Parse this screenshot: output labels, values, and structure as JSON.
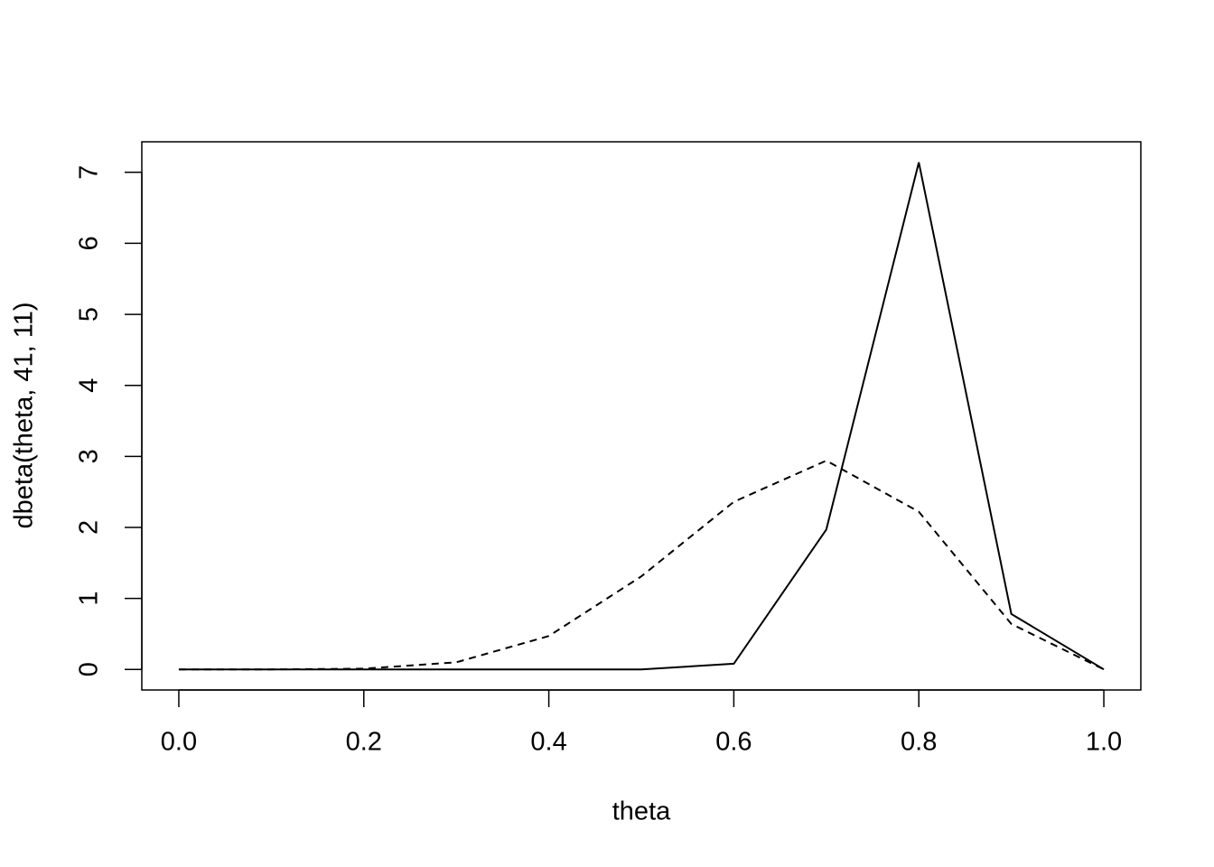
{
  "chart_data": {
    "type": "line",
    "xlabel": "theta",
    "ylabel": "dbeta(theta, 41, 11)",
    "x": [
      0,
      0.1,
      0.2,
      0.3,
      0.4,
      0.5,
      0.6,
      0.7,
      0.8,
      0.9,
      1
    ],
    "series": [
      {
        "color": "#000000",
        "line_style": "solid",
        "values": [
          0,
          0,
          0,
          0,
          0,
          0,
          0.08,
          1.97,
          7.14,
          0.78,
          0
        ]
      },
      {
        "color": "#000000",
        "line_style": "dashed",
        "values": [
          0,
          0,
          0.01,
          0.1,
          0.47,
          1.31,
          2.36,
          2.94,
          2.22,
          0.64,
          0
        ]
      }
    ],
    "xlim": [
      -0.04,
      1.04
    ],
    "xticks": [
      {
        "value": 0,
        "label": "0.0"
      },
      0.2,
      0.4,
      0.6,
      0.8,
      {
        "value": 1,
        "label": "1.0"
      }
    ],
    "ylim": [
      -0.29,
      7.43
    ],
    "yticks": [
      0,
      1,
      2,
      3,
      4,
      5,
      6,
      7
    ],
    "grid": false
  }
}
